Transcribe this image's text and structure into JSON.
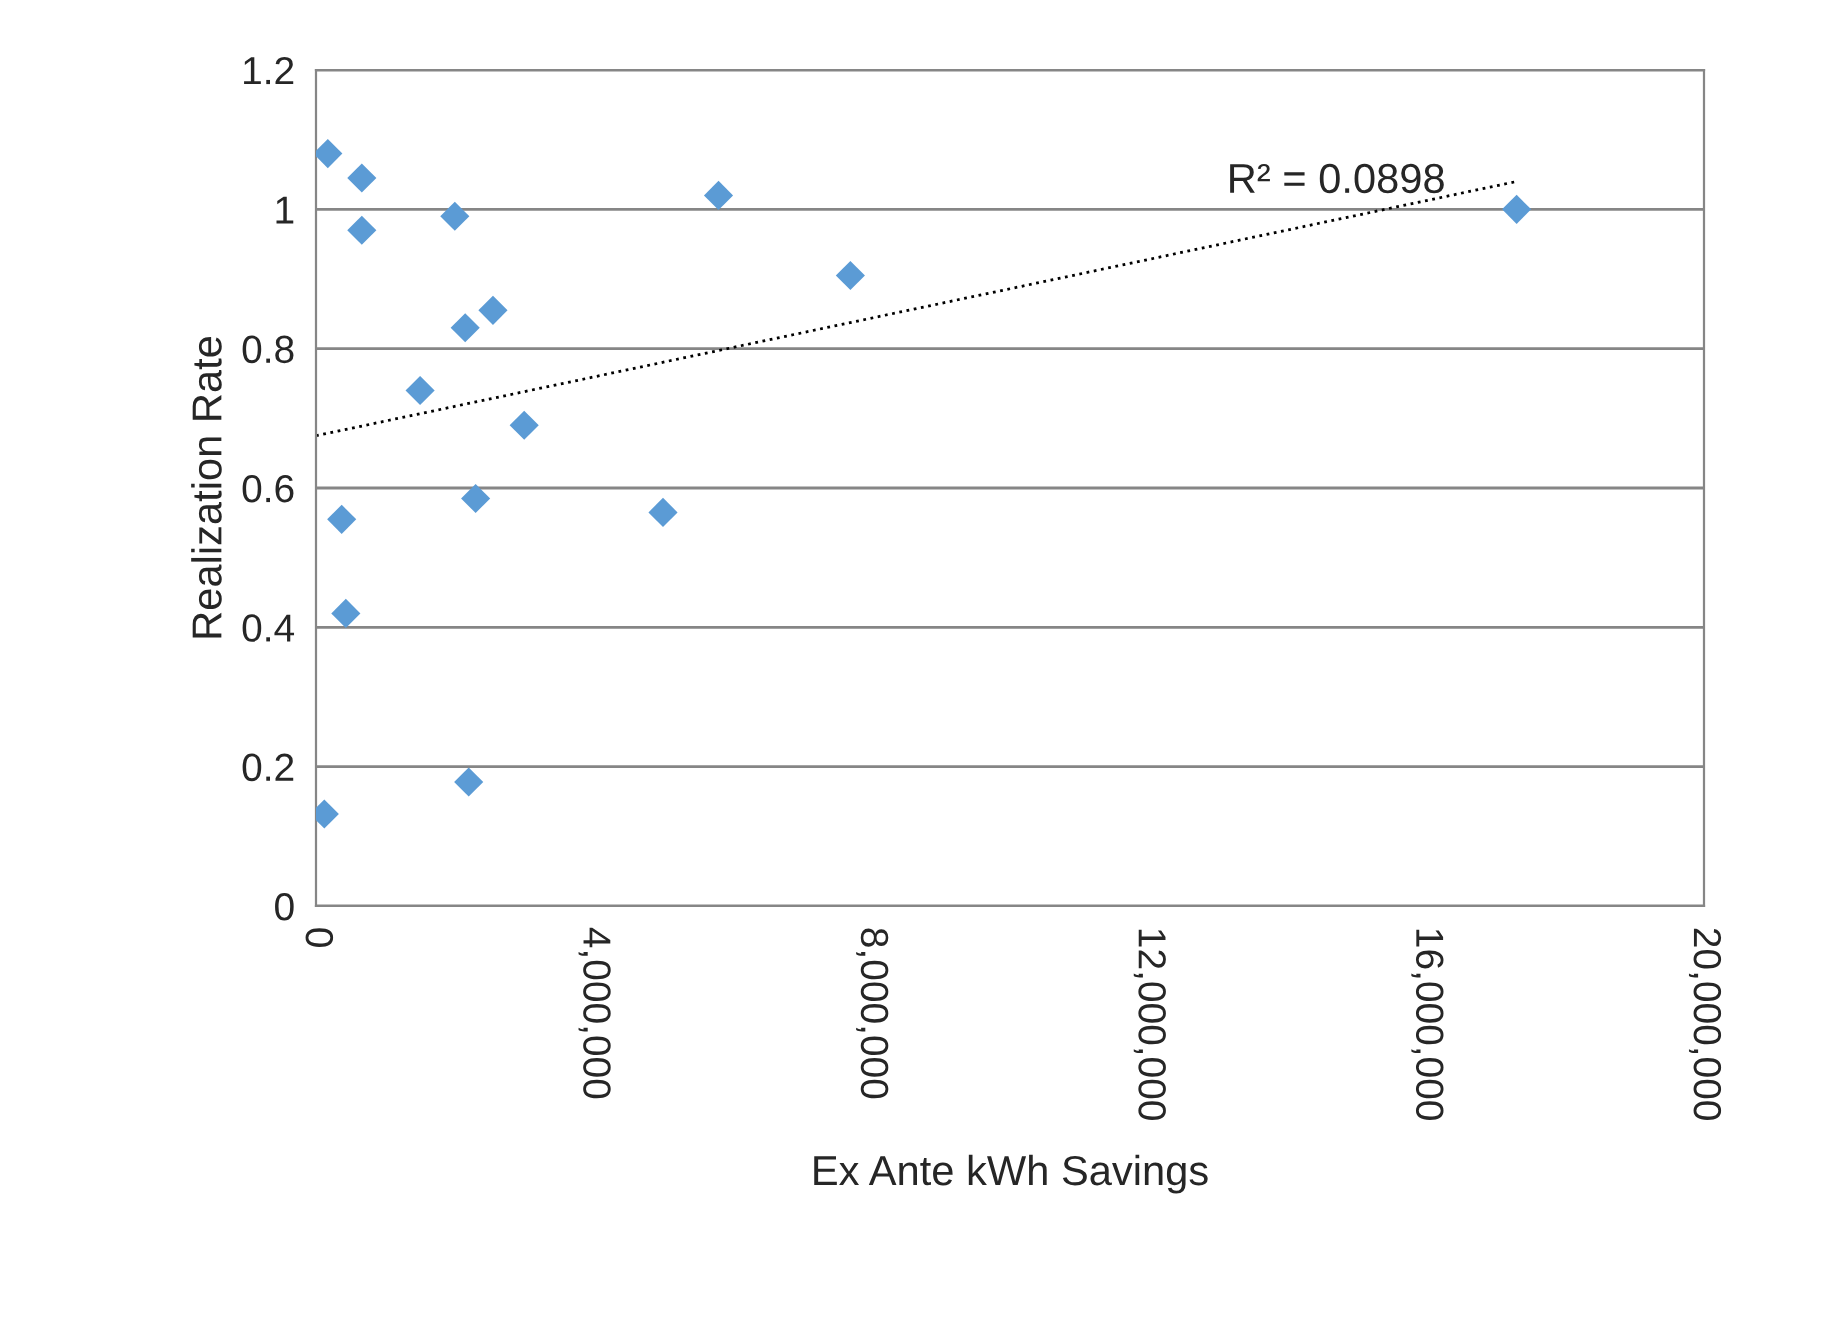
{
  "chart_data": {
    "type": "scatter",
    "xlabel": "Ex Ante kWh Savings",
    "ylabel": "Realization Rate",
    "xlim": [
      0,
      20000000
    ],
    "xticks": [
      {
        "value": 0,
        "label": "0"
      },
      {
        "value": 4000000,
        "label": "4,000,000"
      },
      {
        "value": 8000000,
        "label": "8,000,000"
      },
      {
        "value": 12000000,
        "label": "12,000,000"
      },
      {
        "value": 16000000,
        "label": "16,000,000"
      },
      {
        "value": 20000000,
        "label": "20,000,000"
      }
    ],
    "ylim": [
      0,
      1.2
    ],
    "yticks": [
      0,
      0.2,
      0.4,
      0.6,
      0.8,
      1,
      1.2
    ],
    "grid": "y",
    "legend": false,
    "series": [
      {
        "color": "#5b9bd5",
        "marker": "diamond",
        "x": [
          170000,
          660000,
          660000,
          2000000,
          2150000,
          2550000,
          1500000,
          3000000,
          2300000,
          370000,
          430000,
          2200000,
          120000,
          5000000,
          5800000,
          7700000,
          17300000
        ],
        "values": [
          1.08,
          1.045,
          0.97,
          0.99,
          0.83,
          0.855,
          0.74,
          0.69,
          0.585,
          0.555,
          0.42,
          0.178,
          0.132,
          0.565,
          1.02,
          0.905,
          1.0
        ]
      },
      {
        "type": "line",
        "color": "#000000",
        "marker": "none",
        "line_style": "dotted",
        "x": [
          0,
          17300000
        ],
        "values": [
          0.675,
          1.04
        ]
      }
    ],
    "annotations": [
      "R² = 0.0898"
    ]
  }
}
